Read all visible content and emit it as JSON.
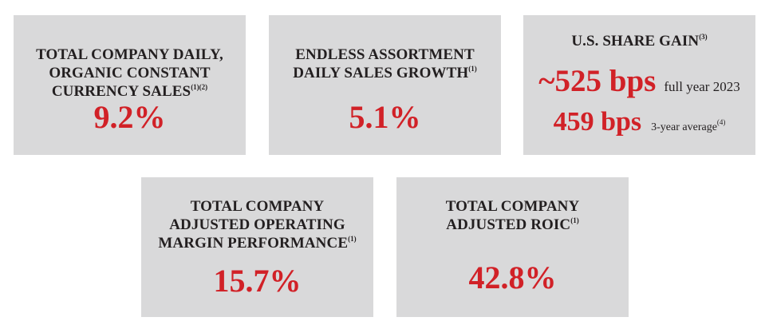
{
  "cards": {
    "organic_sales": {
      "title_line1": "TOTAL COMPANY DAILY,",
      "title_line2": "ORGANIC CONSTANT",
      "title_line3": "CURRENCY SALES",
      "title_sup": "(1)(2)",
      "value": "9.2%"
    },
    "endless_assortment": {
      "title_line1": "ENDLESS ASSORTMENT",
      "title_line2": "DAILY SALES GROWTH",
      "title_sup": "(1)",
      "value": "5.1%"
    },
    "us_share": {
      "title": "U.S. SHARE GAIN",
      "title_sup": "(3)",
      "full_year_value": "~525 bps",
      "full_year_label": "full year 2023",
      "three_year_value": "459 bps",
      "three_year_label": "3-year average",
      "three_year_sup": "(4)"
    },
    "operating_margin": {
      "title_line1": "TOTAL COMPANY",
      "title_line2": "ADJUSTED OPERATING",
      "title_line3": "MARGIN PERFORMANCE",
      "title_sup": "(1)",
      "value": "15.7%"
    },
    "roic": {
      "title_line1": "TOTAL COMPANY",
      "title_line2": "ADJUSTED ROIC",
      "title_sup": "(1)",
      "value": "42.8%"
    }
  },
  "colors": {
    "card_background": "#d9d9da",
    "title_text": "#231f20",
    "highlight_red": "#d12127"
  }
}
